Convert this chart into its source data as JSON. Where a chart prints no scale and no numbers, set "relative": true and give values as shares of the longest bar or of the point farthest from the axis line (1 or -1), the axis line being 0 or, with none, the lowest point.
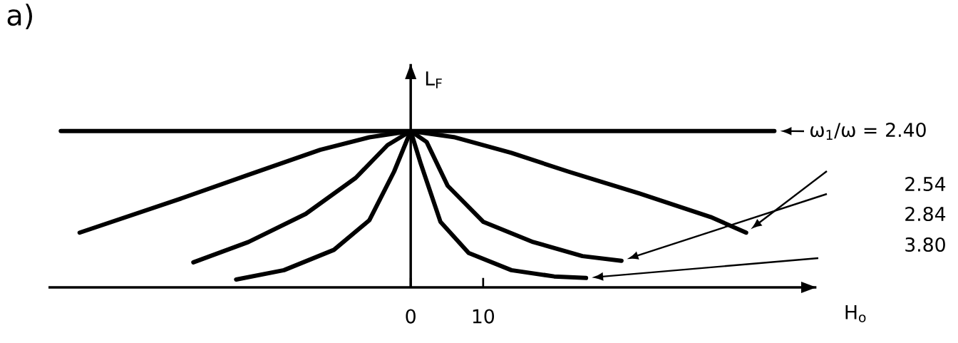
{
  "chart_data": {
    "type": "line",
    "relative": true,
    "xlabel": "H$_{o}$",
    "ylabel": "L$_{F}$",
    "legend_title": "ω$_{1}$/ω =",
    "annotations": [
      "a)"
    ],
    "xlim": [
      -50,
      56
    ],
    "xticks": [
      0,
      10
    ],
    "marker": "none",
    "line_style": "solid",
    "series": [
      {
        "name": "2.40",
        "color": "#000000",
        "x": [
          -48.3,
          50.2
        ],
        "values": [
          1,
          1
        ]
      },
      {
        "name": "2.54",
        "color": "#000000",
        "x": [
          -45.7,
          -32.2,
          -22.4,
          -12.5,
          -5.7,
          0,
          6.1,
          13.9,
          21.8,
          31.6,
          41.4,
          46.3
        ],
        "values": [
          0.35,
          0.56,
          0.72,
          0.88,
          0.96,
          1,
          0.96,
          0.86,
          0.74,
          0.6,
          0.45,
          0.35
        ]
      },
      {
        "name": "2.84",
        "color": "#000000",
        "x": [
          -30.0,
          -22.4,
          -14.5,
          -7.6,
          -3.2,
          0,
          2.2,
          5.1,
          10,
          16.9,
          23.7,
          29.1
        ],
        "values": [
          0.16,
          0.29,
          0.47,
          0.7,
          0.91,
          1,
          0.93,
          0.65,
          0.42,
          0.29,
          0.2,
          0.17
        ]
      },
      {
        "name": "3.80",
        "color": "#000000",
        "x": [
          -24.1,
          -17.5,
          -10.6,
          -5.7,
          -2.3,
          0,
          1.4,
          4.1,
          8.0,
          13.9,
          19.8,
          24.2
        ],
        "values": [
          0.05,
          0.11,
          0.24,
          0.43,
          0.74,
          1,
          0.79,
          0.42,
          0.22,
          0.11,
          0.07,
          0.06
        ]
      }
    ]
  }
}
